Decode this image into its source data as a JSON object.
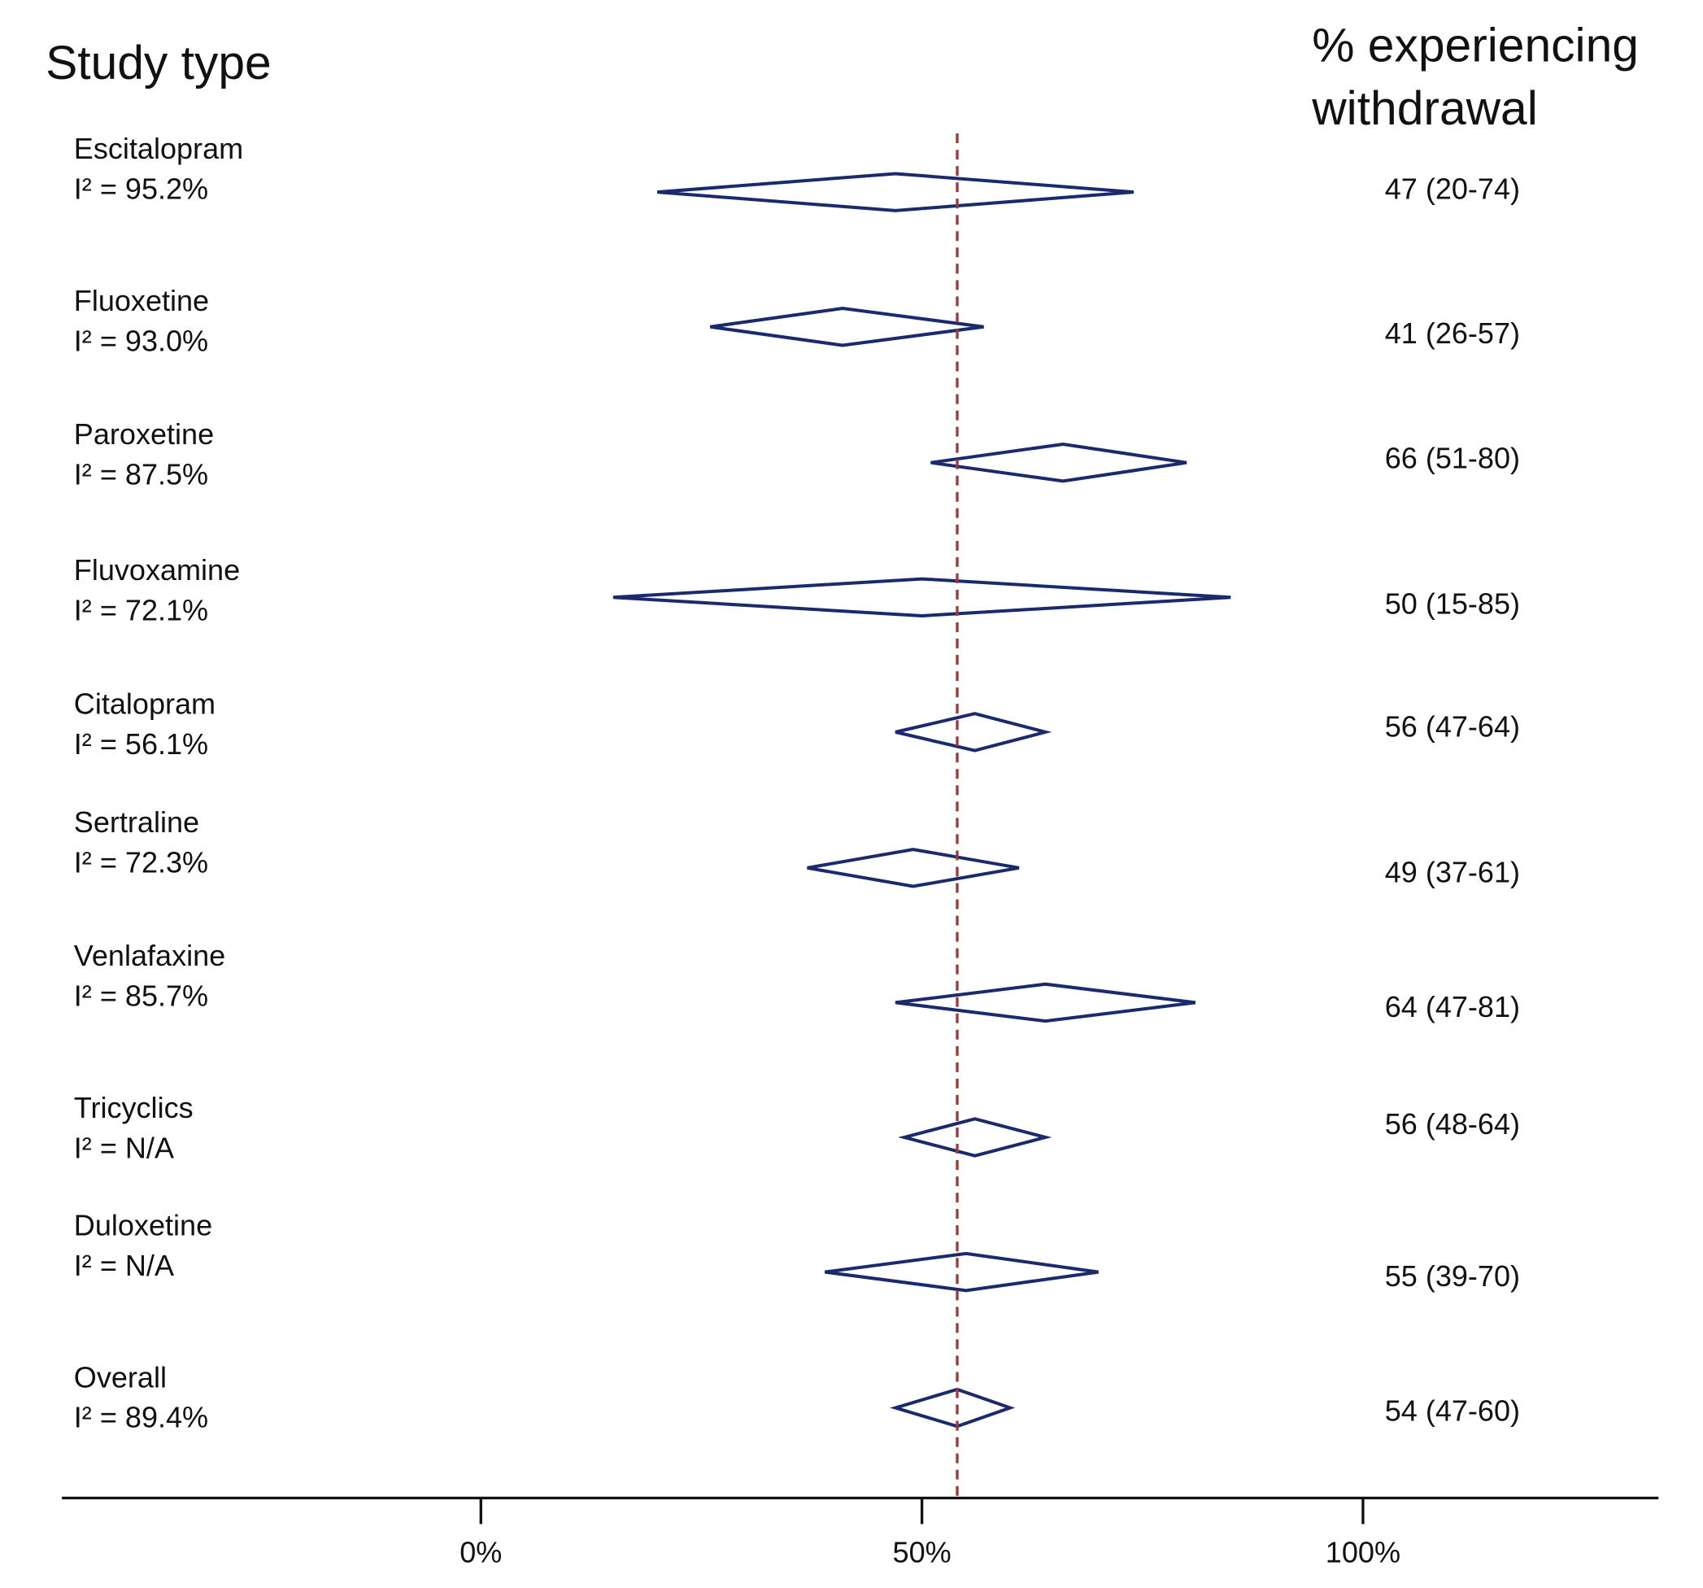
{
  "chart_data": {
    "type": "forest",
    "left_header": "Study type",
    "right_header": [
      "% experiencing",
      "withdrawal"
    ],
    "categories": [
      "Escitalopram",
      "Fluoxetine",
      "Paroxetine",
      "Fluvoxamine",
      "Citalopram",
      "Sertraline",
      "Venlafaxine",
      "Tricyclics",
      "Duloxetine",
      "Overall"
    ],
    "heterogeneity": [
      "I² = 95.2%",
      "I² = 93.0%",
      "I² = 87.5%",
      "I² = 72.1%",
      "I² = 56.1%",
      "I² = 72.3%",
      "I² = 85.7%",
      "I² = N/A",
      "I² = N/A",
      "I² = 89.4%"
    ],
    "values": [
      47,
      41,
      66,
      50,
      56,
      49,
      64,
      56,
      55,
      54
    ],
    "lower": [
      20,
      26,
      51,
      15,
      47,
      37,
      47,
      48,
      39,
      47
    ],
    "upper": [
      74,
      57,
      80,
      85,
      64,
      61,
      81,
      64,
      70,
      60
    ],
    "value_labels": [
      "47 (20-74)",
      "41 (26-57)",
      "66 (51-80)",
      "50 (15-85)",
      "56 (47-64)",
      "49 (37-61)",
      "64 (47-81)",
      "56 (48-64)",
      "55 (39-70)",
      "54 (47-60)"
    ],
    "color": "#1a2a6c",
    "reference_color": "#9b3a3a",
    "xlim": [
      -47.5,
      133.5
    ],
    "xticks": [
      {
        "value": 0,
        "label": "0%"
      },
      {
        "value": 50,
        "label": "50%"
      },
      {
        "value": 100,
        "label": "100%"
      }
    ]
  }
}
